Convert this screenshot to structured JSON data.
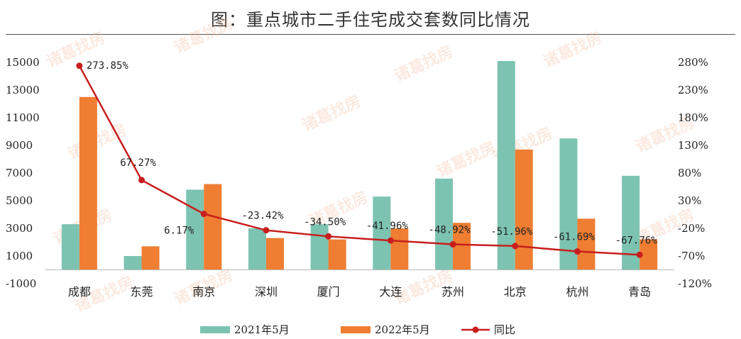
{
  "chart_data": {
    "type": "bar",
    "title": "图：重点城市二手住宅成交套数同比情况",
    "categories": [
      "成都",
      "东莞",
      "南京",
      "深圳",
      "厦门",
      "大连",
      "苏州",
      "北京",
      "杭州",
      "青岛"
    ],
    "series": [
      {
        "name": "2021年5月",
        "type": "bar",
        "color": "#7cc3b1",
        "axis": "left",
        "values": [
          3300,
          1000,
          5800,
          3000,
          3300,
          5300,
          6600,
          15100,
          9500,
          6800
        ]
      },
      {
        "name": "2022年5月",
        "type": "bar",
        "color": "#ef7d32",
        "axis": "left",
        "values": [
          12500,
          1700,
          6200,
          2300,
          2200,
          3000,
          3400,
          8700,
          3700,
          2200
        ]
      },
      {
        "name": "同比",
        "type": "line",
        "color": "#c81e1e",
        "axis": "right",
        "values": [
          273.85,
          67.27,
          6.17,
          -23.42,
          -34.5,
          -41.96,
          -48.92,
          -51.96,
          -61.69,
          -67.76
        ],
        "labels": [
          "273.85%",
          "67.27%",
          "6.17%",
          "-23.42%",
          "-34.50%",
          "-41.96%",
          "-48.92%",
          "-51.96%",
          "-61.69%",
          "-67.76%"
        ]
      }
    ],
    "left_axis": {
      "ylim": [
        -1000,
        15000
      ],
      "ticks": [
        "-1000",
        "1000",
        "3000",
        "5000",
        "7000",
        "9000",
        "11000",
        "13000",
        "15000"
      ]
    },
    "right_axis": {
      "ylim": [
        -120,
        280
      ],
      "ticks": [
        "-120%",
        "-70%",
        "-20%",
        "30%",
        "80%",
        "130%",
        "180%",
        "230%",
        "280%"
      ]
    },
    "legend_position": "bottom",
    "grid": false,
    "watermark": "诸葛找房"
  }
}
